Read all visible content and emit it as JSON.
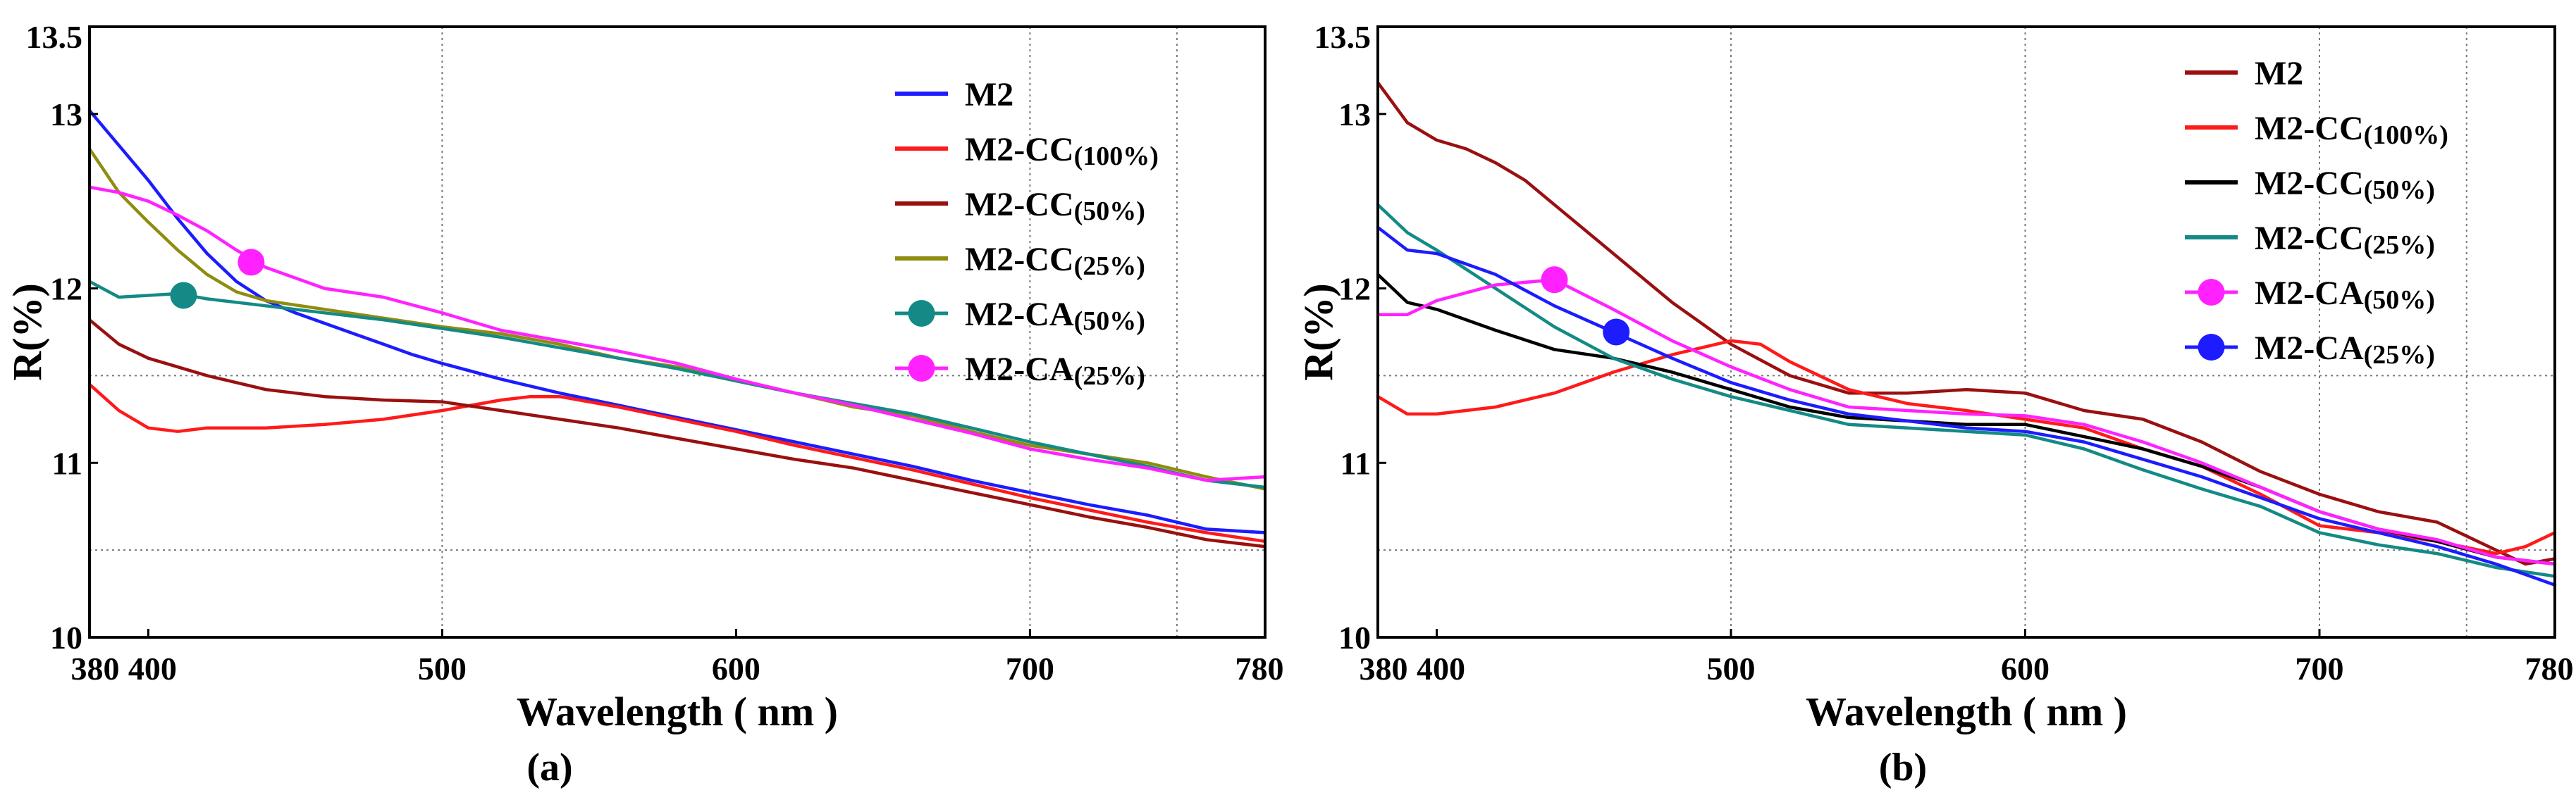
{
  "chart_data": [
    {
      "type": "line",
      "panel_label": "(a)",
      "xlabel": "Wavelength ( nm )",
      "ylabel": "R(%)",
      "xlim": [
        380,
        780
      ],
      "ylim": [
        10,
        13.5
      ],
      "x_ticks": [
        380,
        400,
        500,
        600,
        700,
        780
      ],
      "y_ticks": [
        10,
        11,
        12,
        13,
        13.5
      ],
      "x_grid": [
        500,
        700,
        750
      ],
      "y_grid": [
        11.5,
        10.5
      ],
      "legend_position": "top-right",
      "series": [
        {
          "name": "M2",
          "sub": "",
          "color": "#1c1cff",
          "marker": "line",
          "x": [
            380,
            390,
            400,
            410,
            420,
            430,
            440,
            450,
            460,
            470,
            480,
            490,
            500,
            520,
            540,
            560,
            580,
            600,
            620,
            640,
            660,
            680,
            700,
            720,
            740,
            760,
            780
          ],
          "y": [
            13.02,
            12.82,
            12.62,
            12.4,
            12.2,
            12.04,
            11.93,
            11.86,
            11.8,
            11.74,
            11.68,
            11.62,
            11.57,
            11.48,
            11.4,
            11.33,
            11.26,
            11.19,
            11.12,
            11.05,
            10.98,
            10.9,
            10.83,
            10.76,
            10.7,
            10.62,
            10.6
          ]
        },
        {
          "name": "M2-CC",
          "sub": "(100%)",
          "color": "#ff1a1a",
          "marker": "line",
          "x": [
            380,
            390,
            400,
            410,
            420,
            440,
            460,
            480,
            500,
            510,
            520,
            530,
            540,
            560,
            580,
            600,
            620,
            640,
            660,
            680,
            700,
            720,
            740,
            760,
            780
          ],
          "y": [
            11.45,
            11.3,
            11.2,
            11.18,
            11.2,
            11.2,
            11.22,
            11.25,
            11.3,
            11.33,
            11.36,
            11.38,
            11.38,
            11.32,
            11.25,
            11.18,
            11.1,
            11.03,
            10.96,
            10.88,
            10.8,
            10.73,
            10.66,
            10.6,
            10.55
          ]
        },
        {
          "name": "M2-CC",
          "sub": "(50%)",
          "color": "#9a1010",
          "marker": "line",
          "x": [
            380,
            390,
            400,
            420,
            440,
            460,
            480,
            500,
            520,
            540,
            560,
            580,
            600,
            620,
            640,
            660,
            680,
            700,
            720,
            740,
            760,
            780
          ],
          "y": [
            11.82,
            11.68,
            11.6,
            11.5,
            11.42,
            11.38,
            11.36,
            11.35,
            11.3,
            11.25,
            11.2,
            11.14,
            11.08,
            11.02,
            10.97,
            10.9,
            10.83,
            10.76,
            10.69,
            10.63,
            10.56,
            10.52
          ]
        },
        {
          "name": "M2-CC",
          "sub": "(25%)",
          "color": "#8f8c10",
          "marker": "line",
          "x": [
            380,
            390,
            400,
            410,
            420,
            430,
            440,
            460,
            480,
            500,
            520,
            540,
            560,
            580,
            600,
            620,
            640,
            660,
            680,
            700,
            720,
            740,
            760,
            780
          ],
          "y": [
            12.8,
            12.55,
            12.38,
            12.22,
            12.08,
            11.98,
            11.93,
            11.88,
            11.83,
            11.78,
            11.74,
            11.68,
            11.6,
            11.55,
            11.47,
            11.4,
            11.32,
            11.27,
            11.18,
            11.1,
            11.05,
            11.0,
            10.92,
            10.85
          ]
        },
        {
          "name": "M2-CA",
          "sub": "(50%)",
          "color": "#138a85",
          "marker": "dot",
          "marker_x": 412,
          "marker_y": 11.96,
          "x": [
            380,
            390,
            400,
            410,
            420,
            440,
            460,
            480,
            500,
            520,
            540,
            560,
            580,
            600,
            620,
            640,
            660,
            680,
            700,
            720,
            740,
            760,
            780
          ],
          "y": [
            12.04,
            11.95,
            11.96,
            11.97,
            11.94,
            11.9,
            11.86,
            11.82,
            11.77,
            11.72,
            11.66,
            11.6,
            11.54,
            11.47,
            11.4,
            11.34,
            11.28,
            11.2,
            11.12,
            11.05,
            10.98,
            10.9,
            10.86
          ]
        },
        {
          "name": "M2-CA",
          "sub": "(25%)",
          "color": "#ff22ff",
          "marker": "dot",
          "marker_x": 435,
          "marker_y": 12.15,
          "x": [
            380,
            390,
            400,
            410,
            420,
            430,
            440,
            460,
            480,
            500,
            520,
            540,
            560,
            580,
            600,
            620,
            640,
            660,
            680,
            700,
            720,
            740,
            760,
            780
          ],
          "y": [
            12.58,
            12.55,
            12.5,
            12.42,
            12.33,
            12.22,
            12.12,
            12.0,
            11.95,
            11.86,
            11.76,
            11.7,
            11.64,
            11.57,
            11.48,
            11.4,
            11.33,
            11.25,
            11.17,
            11.08,
            11.02,
            10.97,
            10.9,
            10.92
          ]
        }
      ]
    },
    {
      "type": "line",
      "panel_label": "(b)",
      "xlabel": "Wavelength ( nm )",
      "ylabel": "R(%)",
      "xlim": [
        380,
        780
      ],
      "ylim": [
        10,
        13.5
      ],
      "x_ticks": [
        380,
        400,
        500,
        600,
        700,
        780
      ],
      "y_ticks": [
        10,
        11,
        12,
        13,
        13.5
      ],
      "x_grid": [
        500,
        600,
        700,
        750
      ],
      "y_grid": [
        11.5,
        10.5
      ],
      "legend_position": "top-right",
      "series": [
        {
          "name": "M2",
          "sub": "",
          "color": "#9a1010",
          "marker": "line",
          "x": [
            380,
            390,
            400,
            410,
            420,
            430,
            440,
            460,
            480,
            500,
            520,
            540,
            560,
            580,
            600,
            620,
            640,
            660,
            680,
            700,
            720,
            740,
            760,
            770,
            780
          ],
          "y": [
            13.18,
            12.95,
            12.85,
            12.8,
            12.72,
            12.62,
            12.48,
            12.2,
            11.92,
            11.68,
            11.5,
            11.4,
            11.4,
            11.42,
            11.4,
            11.3,
            11.25,
            11.12,
            10.95,
            10.82,
            10.72,
            10.66,
            10.5,
            10.42,
            10.45
          ]
        },
        {
          "name": "M2-CC",
          "sub": "(100%)",
          "color": "#ff1a1a",
          "marker": "line",
          "x": [
            380,
            390,
            400,
            420,
            440,
            460,
            480,
            500,
            510,
            520,
            540,
            560,
            580,
            600,
            620,
            640,
            660,
            680,
            700,
            720,
            740,
            760,
            770,
            780
          ],
          "y": [
            11.38,
            11.28,
            11.28,
            11.32,
            11.4,
            11.52,
            11.62,
            11.7,
            11.68,
            11.58,
            11.42,
            11.34,
            11.3,
            11.25,
            11.2,
            11.08,
            10.98,
            10.82,
            10.64,
            10.6,
            10.55,
            10.48,
            10.52,
            10.6
          ]
        },
        {
          "name": "M2-CC",
          "sub": "(50%)",
          "color": "#000000",
          "marker": "line",
          "x": [
            380,
            390,
            400,
            420,
            440,
            460,
            480,
            500,
            520,
            540,
            560,
            580,
            600,
            620,
            640,
            660,
            680,
            700,
            720,
            740,
            760,
            780
          ],
          "y": [
            12.08,
            11.92,
            11.88,
            11.76,
            11.65,
            11.6,
            11.52,
            11.42,
            11.32,
            11.26,
            11.24,
            11.22,
            11.22,
            11.15,
            11.08,
            10.98,
            10.86,
            10.72,
            10.62,
            10.55,
            10.46,
            10.42
          ]
        },
        {
          "name": "M2-CC",
          "sub": "(25%)",
          "color": "#138a85",
          "marker": "line",
          "x": [
            380,
            390,
            400,
            420,
            440,
            460,
            480,
            500,
            520,
            540,
            560,
            580,
            600,
            620,
            640,
            660,
            680,
            700,
            720,
            740,
            760,
            780
          ],
          "y": [
            12.48,
            12.32,
            12.22,
            12.0,
            11.78,
            11.6,
            11.48,
            11.38,
            11.3,
            11.22,
            11.2,
            11.18,
            11.16,
            11.08,
            10.96,
            10.85,
            10.75,
            10.6,
            10.53,
            10.48,
            10.4,
            10.35
          ]
        },
        {
          "name": "M2-CA",
          "sub": "(50%)",
          "color": "#ff22ff",
          "marker": "dot",
          "marker_x": 440,
          "marker_y": 12.05,
          "x": [
            380,
            390,
            400,
            420,
            440,
            460,
            480,
            500,
            520,
            540,
            560,
            580,
            600,
            620,
            640,
            660,
            680,
            700,
            720,
            740,
            760,
            780
          ],
          "y": [
            11.85,
            11.85,
            11.93,
            12.02,
            12.05,
            11.88,
            11.7,
            11.55,
            11.42,
            11.32,
            11.3,
            11.28,
            11.27,
            11.22,
            11.12,
            11.0,
            10.86,
            10.72,
            10.62,
            10.56,
            10.46,
            10.42
          ]
        },
        {
          "name": "M2-CA",
          "sub": "(25%)",
          "color": "#1c1cff",
          "marker": "dot",
          "marker_x": 461,
          "marker_y": 11.75,
          "x": [
            380,
            390,
            400,
            420,
            440,
            460,
            480,
            500,
            520,
            540,
            560,
            580,
            600,
            620,
            640,
            660,
            680,
            700,
            720,
            740,
            760,
            780
          ],
          "y": [
            12.35,
            12.22,
            12.2,
            12.08,
            11.9,
            11.75,
            11.6,
            11.46,
            11.36,
            11.28,
            11.24,
            11.2,
            11.18,
            11.12,
            11.02,
            10.92,
            10.8,
            10.68,
            10.6,
            10.52,
            10.42,
            10.3
          ]
        }
      ]
    }
  ]
}
